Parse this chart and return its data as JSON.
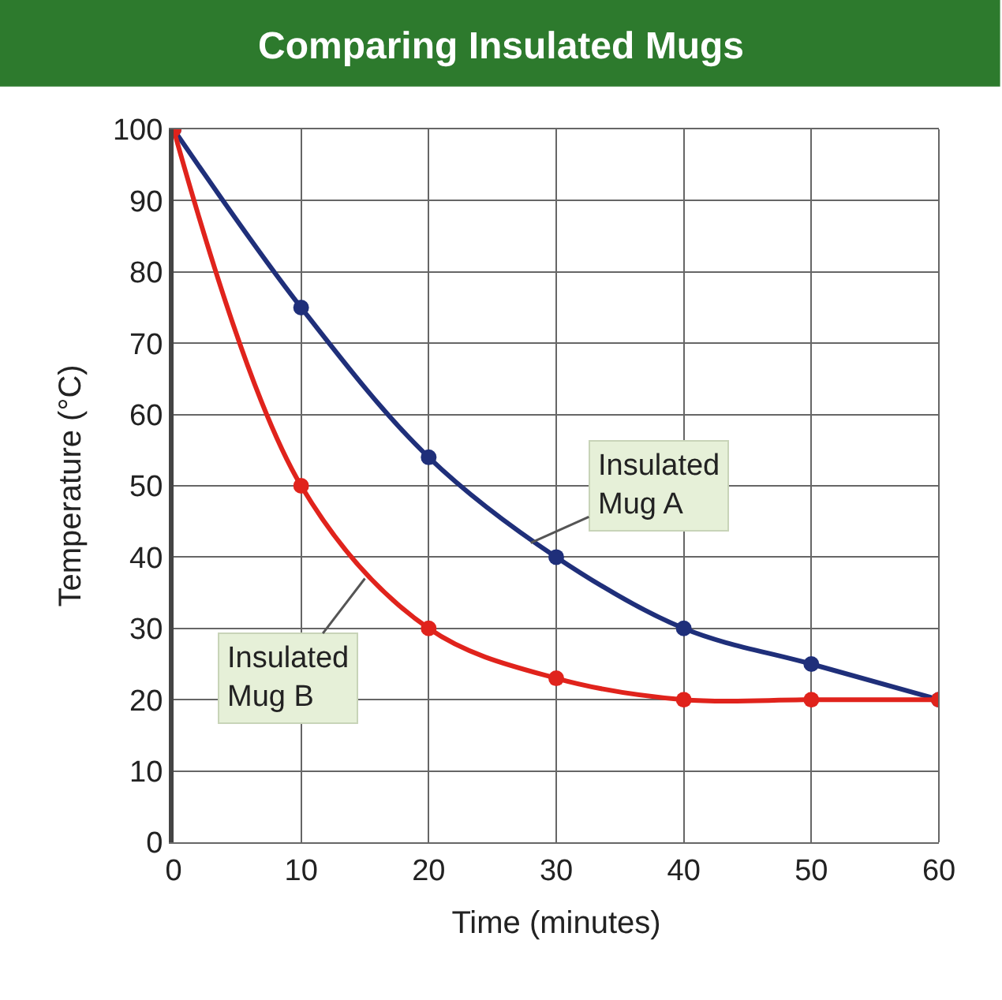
{
  "chart_data": {
    "type": "line",
    "title": "Comparing Insulated Mugs",
    "xlabel": "Time (minutes)",
    "ylabel": "Temperature (°C)",
    "x": [
      0,
      10,
      20,
      30,
      40,
      50,
      60
    ],
    "series": [
      {
        "name": "Insulated Mug A",
        "color": "#1f2f7a",
        "values": [
          100,
          75,
          54,
          40,
          30,
          25,
          20
        ]
      },
      {
        "name": "Insulated Mug B",
        "color": "#e0231c",
        "values": [
          100,
          50,
          30,
          23,
          20,
          20,
          20
        ]
      }
    ],
    "xlim": [
      0,
      60
    ],
    "xticks": [
      0,
      10,
      20,
      30,
      40,
      50,
      60
    ],
    "ylim": [
      0,
      100
    ],
    "yticks": [
      0,
      10,
      20,
      30,
      40,
      50,
      60,
      70,
      80,
      90,
      100
    ],
    "grid": true,
    "legend": false,
    "marker": "circle",
    "line_style": "solid"
  }
}
